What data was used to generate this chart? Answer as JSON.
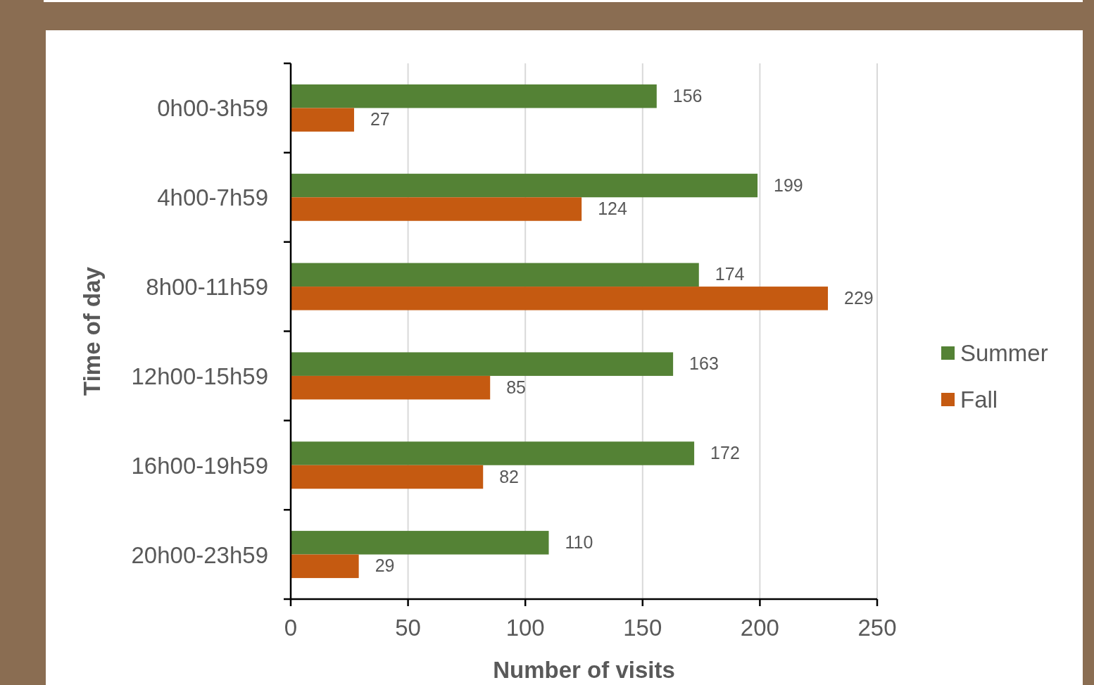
{
  "chart_data": {
    "type": "bar",
    "orientation": "horizontal",
    "xlabel": "Number of visits",
    "ylabel": "Time of day",
    "categories": [
      "0h00-3h59",
      "4h00-7h59",
      "8h00-11h59",
      "12h00-15h59",
      "16h00-19h59",
      "20h00-23h59"
    ],
    "series": [
      {
        "name": "Summer",
        "color": "#548235",
        "values": [
          156,
          199,
          174,
          163,
          172,
          110
        ]
      },
      {
        "name": "Fall",
        "color": "#c55a11",
        "values": [
          27,
          124,
          229,
          85,
          82,
          29
        ]
      }
    ],
    "xlim": [
      0,
      250
    ],
    "xticks": [
      0,
      50,
      100,
      150,
      200,
      250
    ],
    "grid": "x",
    "legend": "right",
    "data_labels": true
  }
}
